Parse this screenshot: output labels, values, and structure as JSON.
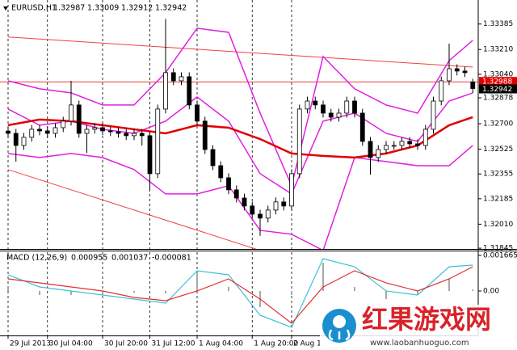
{
  "chart_data": [
    {
      "type": "candlestick",
      "symbol": "EURUSD,H1",
      "open": [
        1.3265,
        1.32634,
        1.32551,
        1.32607,
        1.32662,
        1.32651,
        1.32634,
        1.32673,
        1.32718,
        1.32829,
        1.32634,
        1.32662,
        1.32673,
        1.32651,
        1.32645,
        1.32634,
        1.32618,
        1.32634,
        1.32618,
        1.32357,
        1.32801,
        1.33051,
        1.32995,
        1.33023,
        1.32829,
        1.32718,
        1.32523,
        1.32412,
        1.32329,
        1.32246,
        1.3219,
        1.32135,
        1.32079,
        1.32052,
        1.32107,
        1.32163,
        1.32135,
        1.32357,
        1.32801,
        1.32856,
        1.32829,
        1.32773,
        1.32745,
        1.32773,
        1.32856,
        1.32773,
        1.32579,
        1.32468,
        1.32523,
        1.32551,
        1.32551,
        1.32579,
        1.32562,
        1.32551,
        1.32662,
        1.32856,
        1.32995,
        1.33078,
        1.33062,
        1.32987
      ],
      "high": [
        1.3268,
        1.32664,
        1.32637,
        1.32692,
        1.32692,
        1.32681,
        1.32703,
        1.32748,
        1.32995,
        1.32859,
        1.32692,
        1.32703,
        1.32703,
        1.32681,
        1.32675,
        1.32664,
        1.32664,
        1.32664,
        1.32648,
        1.32831,
        1.3342,
        1.33081,
        1.33053,
        1.33053,
        1.32859,
        1.32748,
        1.32553,
        1.32442,
        1.32359,
        1.32276,
        1.3222,
        1.32165,
        1.32109,
        1.32137,
        1.32193,
        1.32193,
        1.32387,
        1.32831,
        1.32886,
        1.32886,
        1.32859,
        1.32803,
        1.32803,
        1.32886,
        1.32886,
        1.32803,
        1.32609,
        1.32553,
        1.32581,
        1.32581,
        1.32609,
        1.32609,
        1.32592,
        1.32692,
        1.32886,
        1.33025,
        1.3325,
        1.33108,
        1.33092,
        1.33009
      ],
      "low": [
        1.32604,
        1.3244,
        1.32521,
        1.32577,
        1.32621,
        1.32604,
        1.32604,
        1.32643,
        1.32688,
        1.32604,
        1.325,
        1.32632,
        1.32621,
        1.32615,
        1.32604,
        1.32588,
        1.32588,
        1.3255,
        1.3224,
        1.32327,
        1.32771,
        1.32965,
        1.32965,
        1.32799,
        1.32688,
        1.32493,
        1.32382,
        1.32299,
        1.32216,
        1.3216,
        1.32105,
        1.32049,
        1.3193,
        1.32022,
        1.32077,
        1.32105,
        1.32105,
        1.32327,
        1.32771,
        1.32799,
        1.32743,
        1.32715,
        1.32715,
        1.32743,
        1.32743,
        1.32549,
        1.3235,
        1.32438,
        1.32493,
        1.32521,
        1.32521,
        1.32532,
        1.32521,
        1.32521,
        1.32632,
        1.32826,
        1.32965,
        1.33032,
        1.33021,
        1.32912
      ],
      "close": [
        1.32634,
        1.32551,
        1.32607,
        1.32662,
        1.32651,
        1.32634,
        1.32673,
        1.32718,
        1.32829,
        1.32634,
        1.32662,
        1.32673,
        1.32651,
        1.32645,
        1.32634,
        1.32618,
        1.32634,
        1.32618,
        1.32357,
        1.32801,
        1.33051,
        1.32995,
        1.33023,
        1.32829,
        1.32718,
        1.32523,
        1.32412,
        1.32329,
        1.32246,
        1.3219,
        1.32135,
        1.32079,
        1.32052,
        1.32107,
        1.32163,
        1.32135,
        1.32357,
        1.32801,
        1.32856,
        1.32829,
        1.32773,
        1.32745,
        1.32773,
        1.32856,
        1.32773,
        1.32579,
        1.32468,
        1.32523,
        1.32551,
        1.32551,
        1.32579,
        1.32562,
        1.32551,
        1.32662,
        1.32856,
        1.32995,
        1.33078,
        1.33062,
        1.33051,
        1.32942
      ],
      "bull_color": "#ffffff",
      "bear_color": "#000000",
      "ylim": [
        1.3184,
        1.3355
      ],
      "yticks": [
        1.33385,
        {
          "value": 1.3321,
          "label": "1.33210"
        },
        {
          "value": 1.3304,
          "label": "1.33040"
        },
        1.32878,
        {
          "value": 1.327,
          "label": "1.32700"
        },
        1.32525,
        1.32355,
        1.32185,
        {
          "value": 1.3201,
          "label": "1.32010"
        },
        1.31845
      ],
      "xticks": [
        {
          "value": 0,
          "label": "29 Jul 2013"
        },
        {
          "value": 5,
          "label": "30 Jul 04:00"
        },
        {
          "value": 12,
          "label": "30 Jul 20:00"
        },
        {
          "value": 18,
          "label": "31 Jul 12:00"
        },
        {
          "value": 24,
          "label": "1 Aug 04:00"
        },
        {
          "value": 31,
          "label": "1 Aug 20:00"
        },
        {
          "value": 36,
          "label": "2 Aug 1"
        }
      ],
      "overlays": {
        "x": [
          0,
          4,
          8,
          12,
          16,
          20,
          24,
          28,
          32,
          36,
          40,
          44,
          48,
          52,
          56,
          59
        ],
        "series": [
          {
            "color": "#e020e0",
            "line_width": 1.5,
            "values": [
              1.32995,
              1.3294,
              1.32912,
              1.32829,
              1.32829,
              1.33051,
              1.33356,
              1.33328,
              1.32773,
              1.32274,
              1.33162,
              1.3294,
              1.32829,
              1.32773,
              1.33134,
              1.33273
            ]
          },
          {
            "color": "#e020e0",
            "line_width": 1.5,
            "values": [
              1.32801,
              1.3269,
              1.32718,
              1.32662,
              1.32634,
              1.32718,
              1.32884,
              1.32718,
              1.32357,
              1.32218,
              1.32718,
              1.32773,
              1.32634,
              1.32579,
              1.32856,
              1.32912
            ]
          },
          {
            "color": "#e020e0",
            "line_width": 1.5,
            "values": [
              1.32496,
              1.32468,
              1.32496,
              1.32468,
              1.32385,
              1.32218,
              1.32218,
              1.32274,
              1.31968,
              1.31941,
              1.3183,
              1.32468,
              1.3244,
              1.32412,
              1.32412,
              1.32551
            ]
          },
          {
            "color": "#e00000",
            "line_width": 2.5,
            "values": [
              1.3269,
              1.32729,
              1.32718,
              1.3269,
              1.32662,
              1.32634,
              1.3269,
              1.32673,
              1.32595,
              1.32496,
              1.32479,
              1.32468,
              1.32496,
              1.32551,
              1.3269,
              1.32745
            ]
          }
        ]
      },
      "trend_lines": [
        {
          "color": "#f04040",
          "x": [
            0,
            59
          ],
          "values": [
            1.33296,
            1.33089
          ]
        },
        {
          "color": "#f04040",
          "x": [
            0,
            32
          ],
          "values": [
            1.32385,
            1.3183
          ]
        }
      ],
      "price_line": {
        "value": 1.32988,
        "color": "#e00000"
      }
    },
    {
      "type": "macd",
      "title": "MACD (12,26,9)",
      "readout": [
        0.000955,
        0.001037,
        -8.1e-05
      ],
      "x": [
        0,
        4,
        8,
        12,
        16,
        20,
        24,
        28,
        32,
        36,
        40,
        44,
        48,
        52,
        56,
        59
      ],
      "histogram": {
        "color": "#a8a8a8",
        "values": [
          0.000189,
          -0.000189,
          -0.000189,
          -0.000189,
          -7.6e-05,
          -0.000113,
          0.000945,
          0.000189,
          -0.000756,
          -0.000189,
          0.001323,
          0.000189,
          -0.000378,
          -0.000189,
          0.000567,
          7.6e-05
        ]
      },
      "series": [
        {
          "color": "#40c0d8",
          "values": [
            0.000756,
            0.000189,
            0,
            -0.000189,
            -0.000378,
            -0.000567,
            0.000945,
            0.000756,
            -0.001134,
            -0.001701,
            0.001512,
            0.001134,
            0,
            -0.000189,
            0.001134,
            0.00121
          ]
        },
        {
          "color": "#e03030",
          "values": [
            0.000567,
            0.000378,
            0.000189,
            0,
            -0.000302,
            -0.000454,
            0,
            0.000567,
            -0.000378,
            -0.001512,
            0.000189,
            0.000945,
            0.000378,
            0,
            0.000567,
            0.001134
          ]
        }
      ],
      "ylim": [
        -0.00208,
        0.00189
      ],
      "yticks": [
        0.001665,
        {
          "value": 0,
          "label": "0.00"
        }
      ]
    }
  ],
  "watermark": {
    "title": "红果游戏网",
    "url": "www.laobanhuoguo.com"
  }
}
